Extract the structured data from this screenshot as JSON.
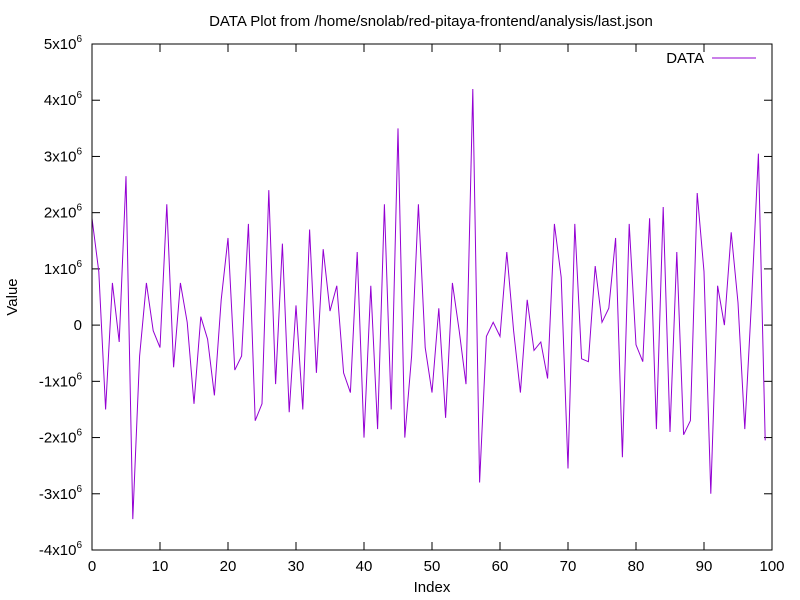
{
  "chart_data": {
    "type": "line",
    "title": "DATA Plot from /home/snolab/red-pitaya-frontend/analysis/last.json",
    "xlabel": "Index",
    "ylabel": "Value",
    "xlim": [
      0,
      100
    ],
    "ylim": [
      -4000000,
      5000000
    ],
    "grid": false,
    "legend_position": "top-right",
    "line_color": "#9400d3",
    "x_ticks": [
      0,
      10,
      20,
      30,
      40,
      50,
      60,
      70,
      80,
      90,
      100
    ],
    "y_ticks": [
      {
        "value": -4000000,
        "mantissa": "-4x10",
        "exponent": "6"
      },
      {
        "value": -3000000,
        "mantissa": "-3x10",
        "exponent": "6"
      },
      {
        "value": -2000000,
        "mantissa": "-2x10",
        "exponent": "6"
      },
      {
        "value": -1000000,
        "mantissa": "-1x10",
        "exponent": "6"
      },
      {
        "value": 0,
        "mantissa": "0",
        "exponent": ""
      },
      {
        "value": 1000000,
        "mantissa": "1x10",
        "exponent": "6"
      },
      {
        "value": 2000000,
        "mantissa": "2x10",
        "exponent": "6"
      },
      {
        "value": 3000000,
        "mantissa": "3x10",
        "exponent": "6"
      },
      {
        "value": 4000000,
        "mantissa": "4x10",
        "exponent": "6"
      },
      {
        "value": 5000000,
        "mantissa": "5x10",
        "exponent": "6"
      }
    ],
    "series": [
      {
        "name": "DATA",
        "x": [
          0,
          1,
          2,
          3,
          4,
          5,
          6,
          7,
          8,
          9,
          10,
          11,
          12,
          13,
          14,
          15,
          16,
          17,
          18,
          19,
          20,
          21,
          22,
          23,
          24,
          25,
          26,
          27,
          28,
          29,
          30,
          31,
          32,
          33,
          34,
          35,
          36,
          37,
          38,
          39,
          40,
          41,
          42,
          43,
          44,
          45,
          46,
          47,
          48,
          49,
          50,
          51,
          52,
          53,
          54,
          55,
          56,
          57,
          58,
          59,
          60,
          61,
          62,
          63,
          64,
          65,
          66,
          67,
          68,
          69,
          70,
          71,
          72,
          73,
          74,
          75,
          76,
          77,
          78,
          79,
          80,
          81,
          82,
          83,
          84,
          85,
          86,
          87,
          88,
          89,
          90,
          91,
          92,
          93,
          94,
          95,
          96,
          97,
          98,
          99
        ],
        "values": [
          1900000,
          950000,
          -1500000,
          750000,
          -300000,
          2650000,
          -3450000,
          -550000,
          750000,
          -100000,
          -400000,
          2150000,
          -750000,
          750000,
          50000,
          -1400000,
          150000,
          -250000,
          -1250000,
          450000,
          1550000,
          -800000,
          -550000,
          1800000,
          -1700000,
          -1400000,
          2400000,
          -1050000,
          1450000,
          -1550000,
          350000,
          -1500000,
          1700000,
          -850000,
          1350000,
          250000,
          700000,
          -850000,
          -1200000,
          1300000,
          -2000000,
          700000,
          -1850000,
          2150000,
          -1500000,
          3500000,
          -2000000,
          -550000,
          2150000,
          -400000,
          -1200000,
          300000,
          -1650000,
          750000,
          -100000,
          -1050000,
          4200000,
          -2800000,
          -200000,
          50000,
          -200000,
          1300000,
          -100000,
          -1200000,
          450000,
          -450000,
          -300000,
          -950000,
          1800000,
          850000,
          -2550000,
          1800000,
          -600000,
          -650000,
          1050000,
          50000,
          300000,
          1550000,
          -2350000,
          1800000,
          -350000,
          -650000,
          1900000,
          -1850000,
          2100000,
          -1900000,
          1300000,
          -1950000,
          -1700000,
          2350000,
          950000,
          -3000000,
          700000,
          0,
          1650000,
          400000,
          -1850000,
          450000,
          3050000,
          -2050000
        ]
      }
    ]
  }
}
